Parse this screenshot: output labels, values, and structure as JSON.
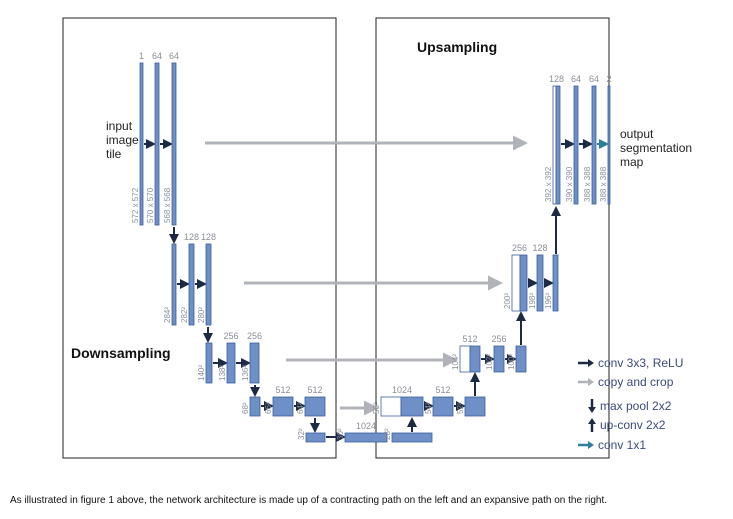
{
  "regions": {
    "downsampling": "Downsampling",
    "upsampling": "Upsampling"
  },
  "input_label": [
    "input",
    "image",
    "tile"
  ],
  "output_label": [
    "output",
    "segmentation",
    "map"
  ],
  "legend": [
    {
      "label": "conv 3x3, ReLU",
      "icon": "dark-right-arrow-icon"
    },
    {
      "label": "copy and crop",
      "icon": "gray-right-arrow-icon"
    },
    {
      "label": "max pool 2x2",
      "icon": "down-arrow-icon"
    },
    {
      "label": "up-conv 2x2",
      "icon": "up-arrow-icon"
    },
    {
      "label": "conv 1x1",
      "icon": "teal-right-arrow-icon"
    }
  ],
  "caption": "As illustrated in figure 1 above, the network architecture is made up of a contracting path on the left and an expansive path on the right.",
  "colors": {
    "block": "#6f8fc7",
    "block_edge": "#3d5f9e",
    "arrow_dark": "#1e2a44",
    "arrow_gray": "#b0b4ba",
    "label": "#8a8f97"
  },
  "blocks": [
    {
      "id": "enc1-a",
      "top": "1",
      "side": "572 x 572"
    },
    {
      "id": "enc1-b",
      "top": "64",
      "side": "570 x 570"
    },
    {
      "id": "enc1-c",
      "top": "64",
      "side": "568 x 568"
    },
    {
      "id": "enc2-a",
      "top": "",
      "side": "284²"
    },
    {
      "id": "enc2-b",
      "top": "128",
      "side": "282²"
    },
    {
      "id": "enc2-c",
      "top": "128",
      "side": "280²"
    },
    {
      "id": "enc3-a",
      "top": "",
      "side": "140²"
    },
    {
      "id": "enc3-b",
      "top": "256",
      "side": "138²"
    },
    {
      "id": "enc3-c",
      "top": "256",
      "side": "136²"
    },
    {
      "id": "enc4-a",
      "top": "",
      "side": "68²"
    },
    {
      "id": "enc4-b",
      "top": "512",
      "side": "66²"
    },
    {
      "id": "enc4-c",
      "top": "512",
      "side": "64²"
    },
    {
      "id": "bot-a",
      "top": "",
      "side": "32²"
    },
    {
      "id": "bot-b",
      "top": "1024",
      "side": "30²"
    },
    {
      "id": "bot-c",
      "top": "",
      "side": "28²"
    },
    {
      "id": "dec4-a",
      "top": "1024",
      "side": "56²"
    },
    {
      "id": "dec4-b",
      "top": "512",
      "side": "54²"
    },
    {
      "id": "dec4-c",
      "top": "",
      "side": "52²"
    },
    {
      "id": "dec3-a",
      "top": "512",
      "side": "104²"
    },
    {
      "id": "dec3-b",
      "top": "256",
      "side": "102²"
    },
    {
      "id": "dec3-c",
      "top": "",
      "side": "100²"
    },
    {
      "id": "dec2-a",
      "top": "256",
      "side": "200²"
    },
    {
      "id": "dec2-b",
      "top": "128",
      "side": "198²"
    },
    {
      "id": "dec2-c",
      "top": "",
      "side": "196²"
    },
    {
      "id": "dec1-a",
      "top": "128",
      "side": "392 x 392"
    },
    {
      "id": "dec1-b",
      "top": "64",
      "side": "390 x 390"
    },
    {
      "id": "dec1-c",
      "top": "64",
      "side": "388 x 388"
    },
    {
      "id": "dec1-d",
      "top": "2",
      "side": "388 x 388"
    }
  ]
}
